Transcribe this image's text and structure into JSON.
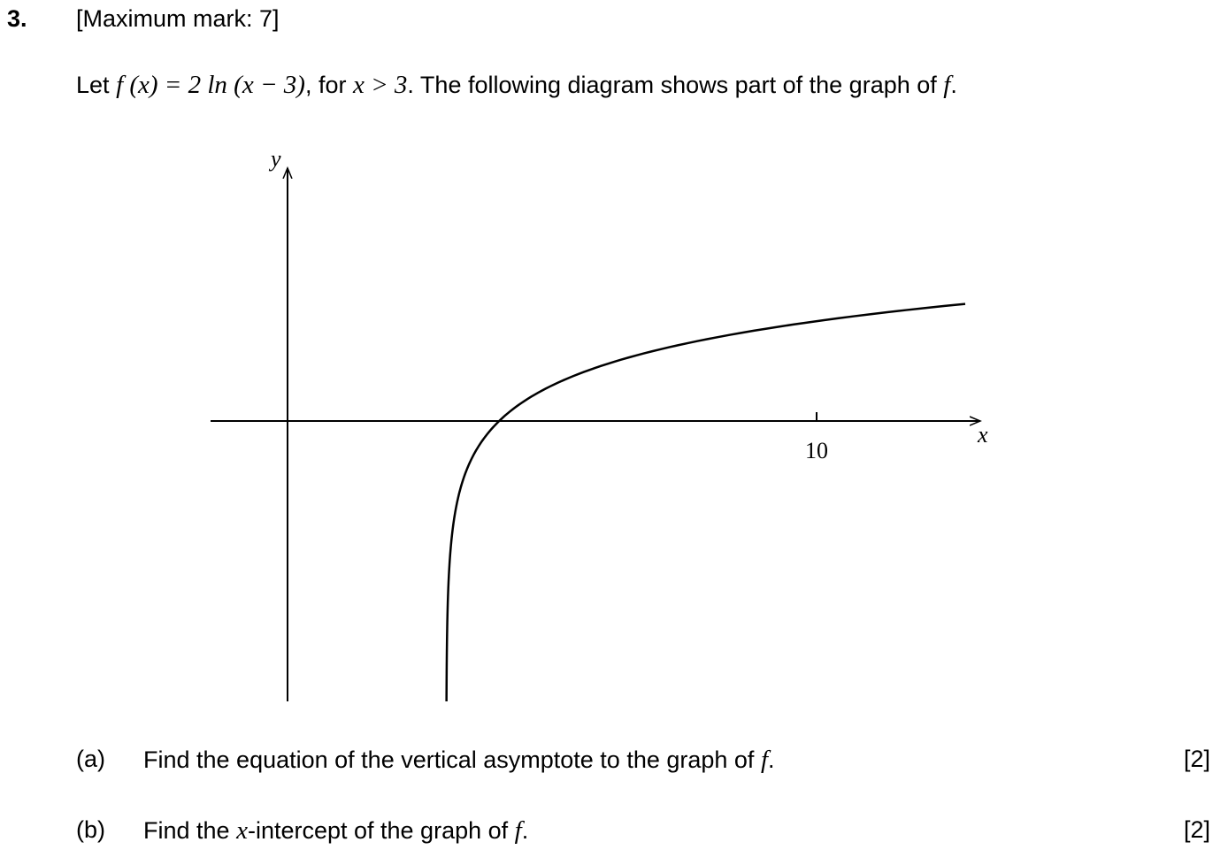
{
  "question": {
    "number": "3.",
    "max_mark": "[Maximum mark: 7]",
    "intro": {
      "let": "Let",
      "func_def": "f (x) = 2 ln (x − 3)",
      "for": ", for",
      "domain": "x > 3",
      "rest": ". The following diagram shows part of the graph of",
      "f": "f",
      "end": "."
    }
  },
  "diagram": {
    "y_label": "y",
    "x_label": "x",
    "x_tick_label": "10"
  },
  "chart_data": {
    "type": "line",
    "function": "2 ln(x − 3)",
    "x_ticks": [
      10
    ],
    "xlabel": "x",
    "ylabel": "y"
  },
  "parts": [
    {
      "label": "(a)",
      "text_before": "Find the equation of the vertical asymptote to the graph of",
      "var": "f",
      "text_after": ".",
      "marks": "[2]"
    },
    {
      "label": "(b)",
      "text_before": "Find the",
      "var": "x",
      "text_after": "-intercept of the graph of",
      "var2": "f",
      "end": ".",
      "marks": "[2]"
    }
  ]
}
